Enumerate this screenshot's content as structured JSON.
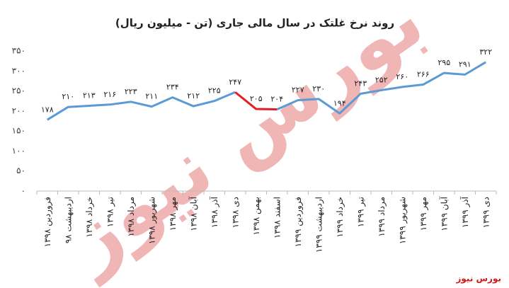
{
  "chart_data": {
    "type": "line",
    "title": "روند نرخ غلتک در سال مالی جاری (تن - میلیون ریال)",
    "categories": [
      "فروردین ۱۳۹۸",
      "اردیبهشت ۹۸",
      "خرداد ۱۳۹۸",
      "تیر ۱۳۹۸",
      "مرداد ۱۳۹۸",
      "شهریور ۱۳۹۸",
      "مهر ۱۳۹۸",
      "آبان ۱۳۹۸",
      "آذر ۱۳۹۸",
      "دی ۱۳۹۸",
      "بهمن ۱۳۹۸",
      "اسفند ۱۳۹۸",
      "فروردین ۱۳۹۹",
      "اردیبهشت ۱۳۹۹",
      "خرداد ۱۳۹۹",
      "تیر ۱۳۹۹",
      "مرداد ۱۳۹۹",
      "شهریور ۱۳۹۹",
      "مهر ۱۳۹۹",
      "آبان ۱۳۹۹",
      "آذر ۱۳۹۹",
      "دی ۱۳۹۹"
    ],
    "series": [
      {
        "color": "#5b9bd5",
        "values": [
          178,
          210,
          213,
          216,
          223,
          211,
          234,
          212,
          225,
          247,
          null,
          204,
          227,
          230,
          194,
          243,
          252,
          260,
          266,
          295,
          291,
          322
        ],
        "value_labels": [
          "۱۷۸",
          "۲۱۰",
          "۲۱۳",
          "۲۱۶",
          "۲۲۳",
          "۲۱۱",
          "۲۳۴",
          "۲۱۲",
          "۲۲۵",
          "۲۴۷",
          null,
          "۲۰۴",
          "۲۲۷",
          "۲۳۰",
          "۱۹۴",
          "۲۴۳",
          "۲۵۲",
          "۲۶۰",
          "۲۶۶",
          "۲۹۵",
          "۲۹۱",
          "۳۲۲"
        ]
      },
      {
        "color": "#e31e24",
        "values": [
          null,
          null,
          null,
          null,
          null,
          null,
          null,
          null,
          null,
          247,
          205,
          204,
          null,
          null,
          null,
          null,
          null,
          null,
          null,
          null,
          null,
          null
        ],
        "value_labels": [
          null,
          null,
          null,
          null,
          null,
          null,
          null,
          null,
          null,
          null,
          "۲۰۵",
          null,
          null,
          null,
          null,
          null,
          null,
          null,
          null,
          null,
          null,
          null
        ]
      }
    ],
    "ylim": [
      0,
      350
    ],
    "yticks": [
      {
        "value": 0,
        "label": "۰"
      },
      {
        "value": 50,
        "label": "۵۰"
      },
      {
        "value": 100,
        "label": "۱۰۰"
      },
      {
        "value": 150,
        "label": "۱۵۰"
      },
      {
        "value": 200,
        "label": "۲۰۰"
      },
      {
        "value": 250,
        "label": "۲۵۰"
      },
      {
        "value": 300,
        "label": "۳۰۰"
      },
      {
        "value": 350,
        "label": "۳۵۰"
      }
    ],
    "grid": false,
    "watermark": "بورس نیوز",
    "source": "بورس نیوز"
  }
}
